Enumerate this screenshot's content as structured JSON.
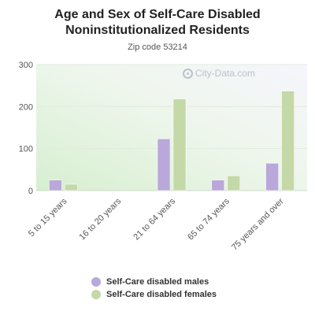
{
  "chart_data": {
    "type": "bar",
    "title": "Age and Sex of Self-Care Disabled Noninstitutionalized Residents",
    "subtitle": "Zip code 53214",
    "categories": [
      "5 to 15 years",
      "16 to 20 years",
      "21 to 64 years",
      "65 to 74 years",
      "75 years and over"
    ],
    "series": [
      {
        "name": "Self-Care disabled males",
        "color": "#b9a8d9",
        "values": [
          25,
          0,
          123,
          25,
          65
        ]
      },
      {
        "name": "Self-Care disabled females",
        "color": "#c5d8a8",
        "values": [
          15,
          0,
          218,
          35,
          237
        ]
      }
    ],
    "ylim": [
      0,
      300
    ],
    "yticks": [
      0,
      100,
      200,
      300
    ],
    "grid": true,
    "legend_position": "bottom"
  },
  "watermark": {
    "text": "City-Data.com",
    "icon": "magnifier-icon"
  }
}
